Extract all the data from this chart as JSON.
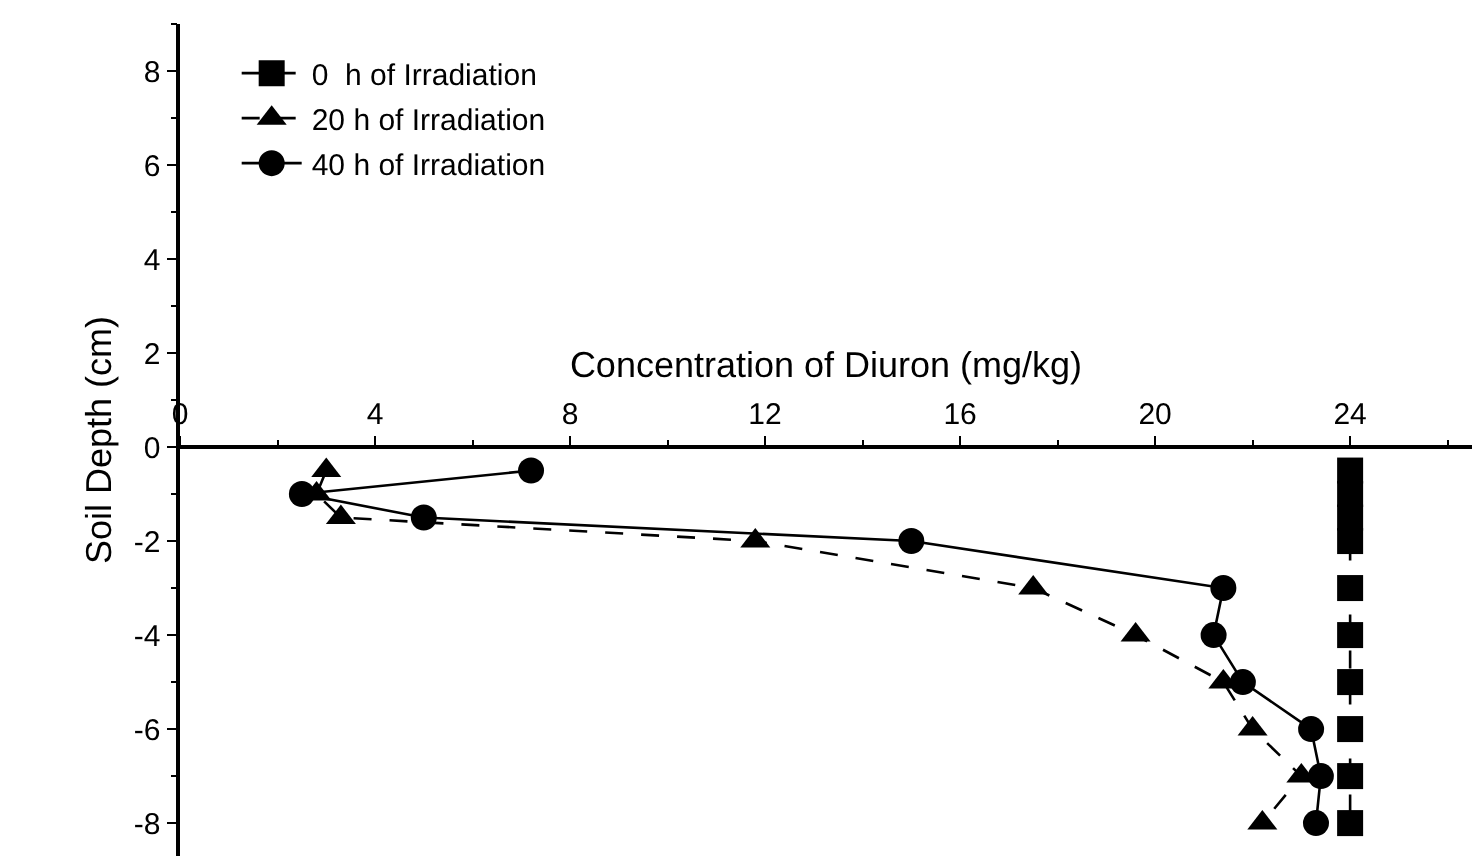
{
  "chart_data": {
    "type": "line",
    "xlabel": "Concentration of Diuron (mg/kg)",
    "ylabel": "Soil Depth (cm)",
    "xlim": [
      0,
      26.5
    ],
    "xticks": [
      0,
      4,
      8,
      12,
      16,
      20,
      24
    ],
    "ylim": [
      -8.7,
      9
    ],
    "yticks": [
      -8,
      -6,
      -4,
      -2,
      0,
      2,
      4,
      6,
      8
    ],
    "legend": "top left",
    "series": [
      {
        "name": "0  h of Irradiation",
        "color": "#000000",
        "marker": "square",
        "line_style": "dashed",
        "x": [
          24,
          24,
          24,
          24,
          24,
          24,
          24,
          24,
          24,
          24
        ],
        "values": [
          -0.5,
          -1,
          -1.5,
          -2,
          -3,
          -4,
          -5,
          -6,
          -7,
          -8
        ]
      },
      {
        "name": "20 h of Irradiation",
        "color": "#000000",
        "marker": "triangle",
        "line_style": "dashed",
        "x": [
          3,
          2.8,
          3.3,
          11.8,
          17.5,
          19.6,
          21.4,
          22,
          23,
          22.2
        ],
        "values": [
          -0.5,
          -1,
          -1.5,
          -2,
          -3,
          -4,
          -5,
          -6,
          -7,
          -8
        ]
      },
      {
        "name": "40 h of Irradiation",
        "color": "#000000",
        "marker": "circle",
        "line_style": "solid",
        "x": [
          7.2,
          2.5,
          5,
          15,
          21.4,
          21.2,
          21.8,
          23.2,
          23.4,
          23.3
        ],
        "values": [
          -0.5,
          -1,
          -1.5,
          -2,
          -3,
          -4,
          -5,
          -6,
          -7,
          -8
        ]
      }
    ]
  }
}
